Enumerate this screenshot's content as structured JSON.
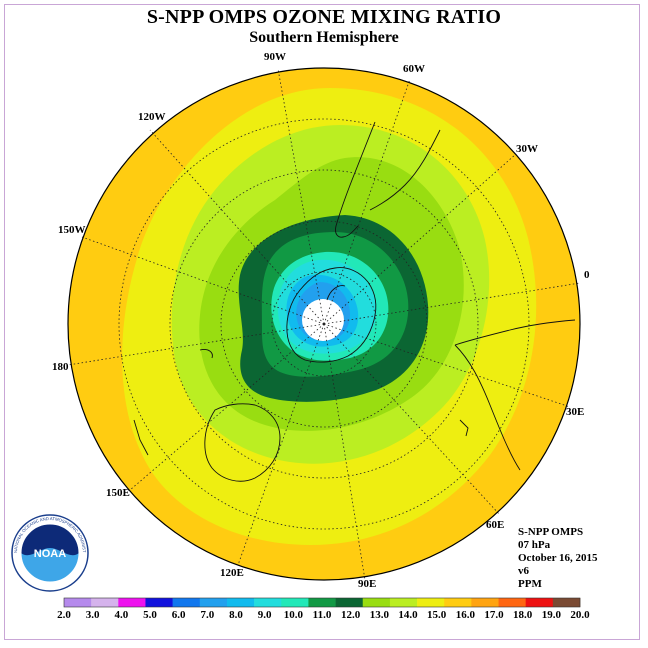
{
  "title": "S-NPP OMPS OZONE MIXING RATIO",
  "subtitle": "Southern Hemisphere",
  "longitude_labels": [
    "90W",
    "60W",
    "30W",
    "0",
    "30E",
    "60E",
    "90E",
    "120E",
    "150E",
    "180",
    "150W",
    "120W"
  ],
  "info": {
    "instrument": "S-NPP OMPS",
    "level": "07 hPa",
    "date": "October 16, 2015",
    "version": "v6",
    "units": "PPM"
  },
  "colorbar": {
    "tick_labels": [
      "2.0",
      "3.0",
      "4.0",
      "5.0",
      "6.0",
      "7.0",
      "8.0",
      "9.0",
      "10.0",
      "11.0",
      "12.0",
      "13.0",
      "14.0",
      "15.0",
      "16.0",
      "17.0",
      "18.0",
      "19.0",
      "20.0"
    ],
    "colors": [
      "#b58aec",
      "#d5b3ec",
      "#ee11ee",
      "#1111dd",
      "#1177ee",
      "#22a0ee",
      "#11bbee",
      "#22dddd",
      "#22e8b8",
      "#119944",
      "#0b6633",
      "#99dd11",
      "#bbee22",
      "#eeee11",
      "#ffcc11",
      "#ffa411",
      "#ff6611",
      "#ee1111",
      "#7a4a33"
    ]
  },
  "logo": {
    "text": "NOAA",
    "ring_text": "NATIONAL OCEANIC AND ATMOSPHERIC ADMINISTRATION · U.S. DEPARTMENT OF COMMERCE"
  }
}
